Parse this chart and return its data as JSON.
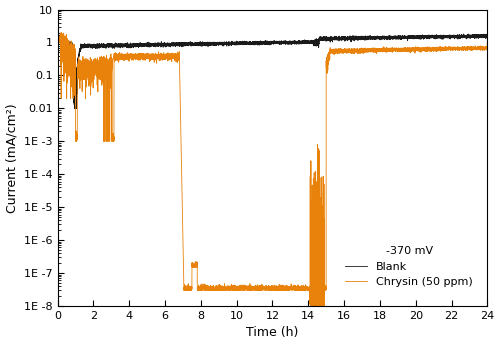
{
  "title": "",
  "xlabel": "Time (h)",
  "ylabel": "Current (mA/cm²)",
  "xlim": [
    0,
    24
  ],
  "ylim_log": [
    1e-08,
    10
  ],
  "xticks": [
    0,
    2,
    4,
    6,
    8,
    10,
    12,
    14,
    16,
    18,
    20,
    22,
    24
  ],
  "ytick_values": [
    10,
    1,
    0.1,
    0.01,
    0.001,
    0.0001,
    1e-05,
    1e-06,
    1e-07,
    1e-08
  ],
  "ytick_labels": [
    "10",
    "1",
    "0.1",
    "0.01",
    "1E -3",
    "1E -4",
    "1E -5",
    "1E -6",
    "1E -7",
    "1E -8"
  ],
  "blank_color": "#1a1a1a",
  "chrysin_color": "#E8820A",
  "legend_title": "-370 mV",
  "legend_label_blank": "Blank",
  "legend_label_chrysin": "Chrysin (50 ppm)",
  "background_color": "#ffffff",
  "seed": 42
}
